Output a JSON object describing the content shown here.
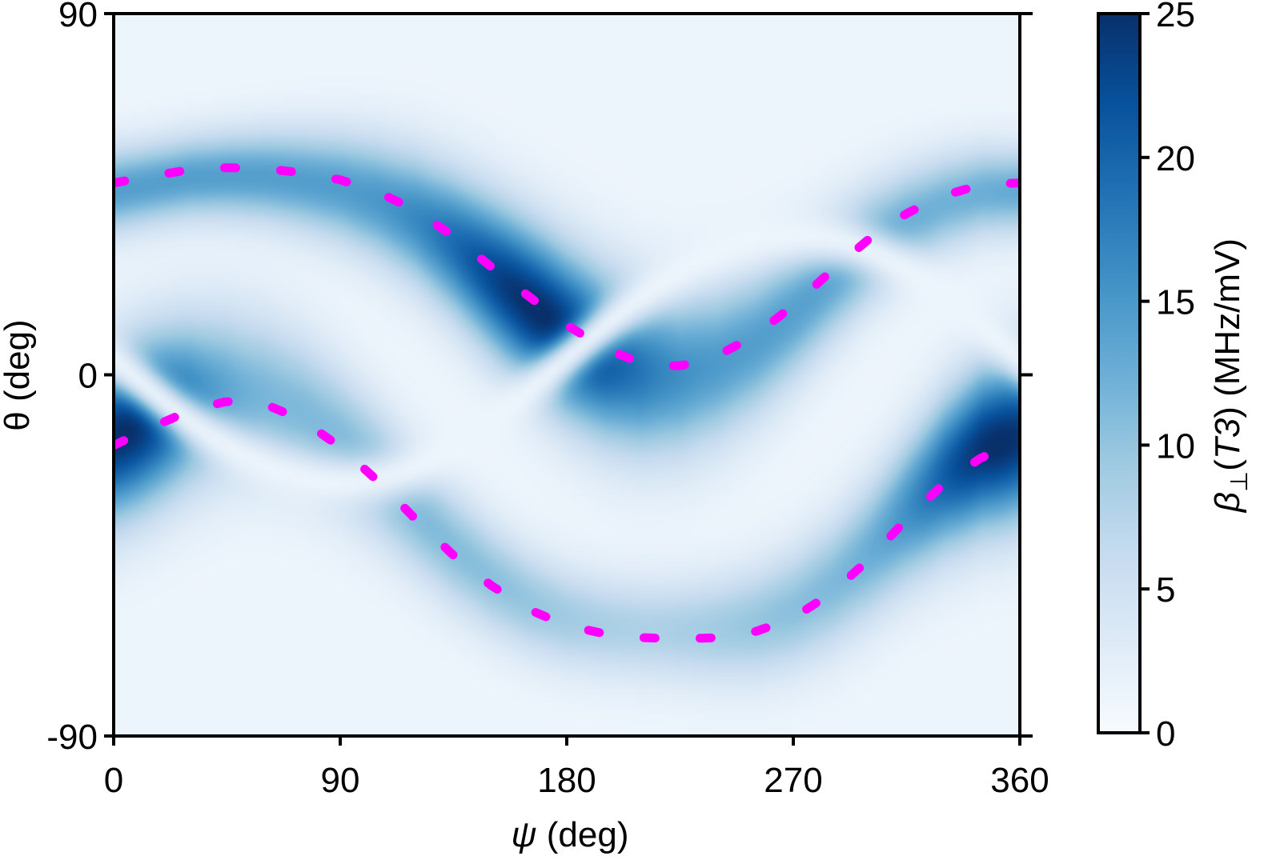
{
  "chart_data": {
    "type": "heatmap",
    "title": "",
    "xlabel": {
      "symbol": "ψ",
      "unit": " (deg)"
    },
    "ylabel": "θ (deg)",
    "xlim": [
      0,
      360
    ],
    "ylim": [
      -90,
      90
    ],
    "xticks": [
      0,
      90,
      180,
      270,
      360
    ],
    "xtick_labels": [
      "0",
      "90",
      "180",
      "270",
      "360"
    ],
    "yticks": [
      -90,
      0,
      90
    ],
    "ytick_labels": [
      "-90",
      "0",
      "90"
    ],
    "colorbar": {
      "label_symbol": "β",
      "label_subscript": "⊥",
      "label_arg": "T3",
      "label_unit": " (MHz/mV)",
      "range": [
        0,
        25
      ],
      "ticks": [
        0,
        5,
        10,
        15,
        20,
        25
      ],
      "tick_labels": [
        "0",
        "5",
        "10",
        "15",
        "20",
        "25"
      ],
      "colormap": "Blues"
    },
    "colormap_stops": [
      "#f7fbff",
      "#deebf7",
      "#c6dbef",
      "#9ecae1",
      "#6baed6",
      "#4292c6",
      "#2171b5",
      "#08519c",
      "#08306b"
    ],
    "overlay_color": "#ff00ff",
    "series": [
      {
        "name": "upper-dotted-curve",
        "style": "dotted",
        "x": [
          0,
          15,
          30,
          45,
          60,
          75,
          90,
          105,
          120,
          135,
          150,
          165,
          180,
          195,
          210,
          225,
          240,
          255,
          270,
          285,
          300,
          315,
          330,
          345,
          360
        ],
        "y": [
          47.8,
          49.5,
          51.1,
          51.6,
          51.4,
          50.3,
          48.6,
          45.5,
          41.0,
          34.5,
          26.9,
          19.5,
          12.4,
          6.6,
          2.8,
          2.2,
          4.8,
          9.9,
          17.3,
          25.8,
          33.8,
          40.2,
          44.7,
          47.4,
          47.8
        ]
      },
      {
        "name": "lower-dotted-curve",
        "style": "dotted",
        "x": [
          0,
          15,
          30,
          45,
          60,
          75,
          90,
          105,
          120,
          135,
          150,
          165,
          180,
          195,
          210,
          225,
          240,
          255,
          270,
          285,
          300,
          315,
          330,
          345,
          360
        ],
        "y": [
          -17.6,
          -13.1,
          -9.0,
          -6.6,
          -7.3,
          -11.3,
          -18.0,
          -26.5,
          -36.0,
          -45.0,
          -52.5,
          -58.5,
          -62.5,
          -64.5,
          -65.5,
          -65.8,
          -65.5,
          -64.0,
          -60.5,
          -54.5,
          -46.0,
          -36.0,
          -27.0,
          -20.5,
          -17.6
        ]
      }
    ],
    "annotations": []
  }
}
